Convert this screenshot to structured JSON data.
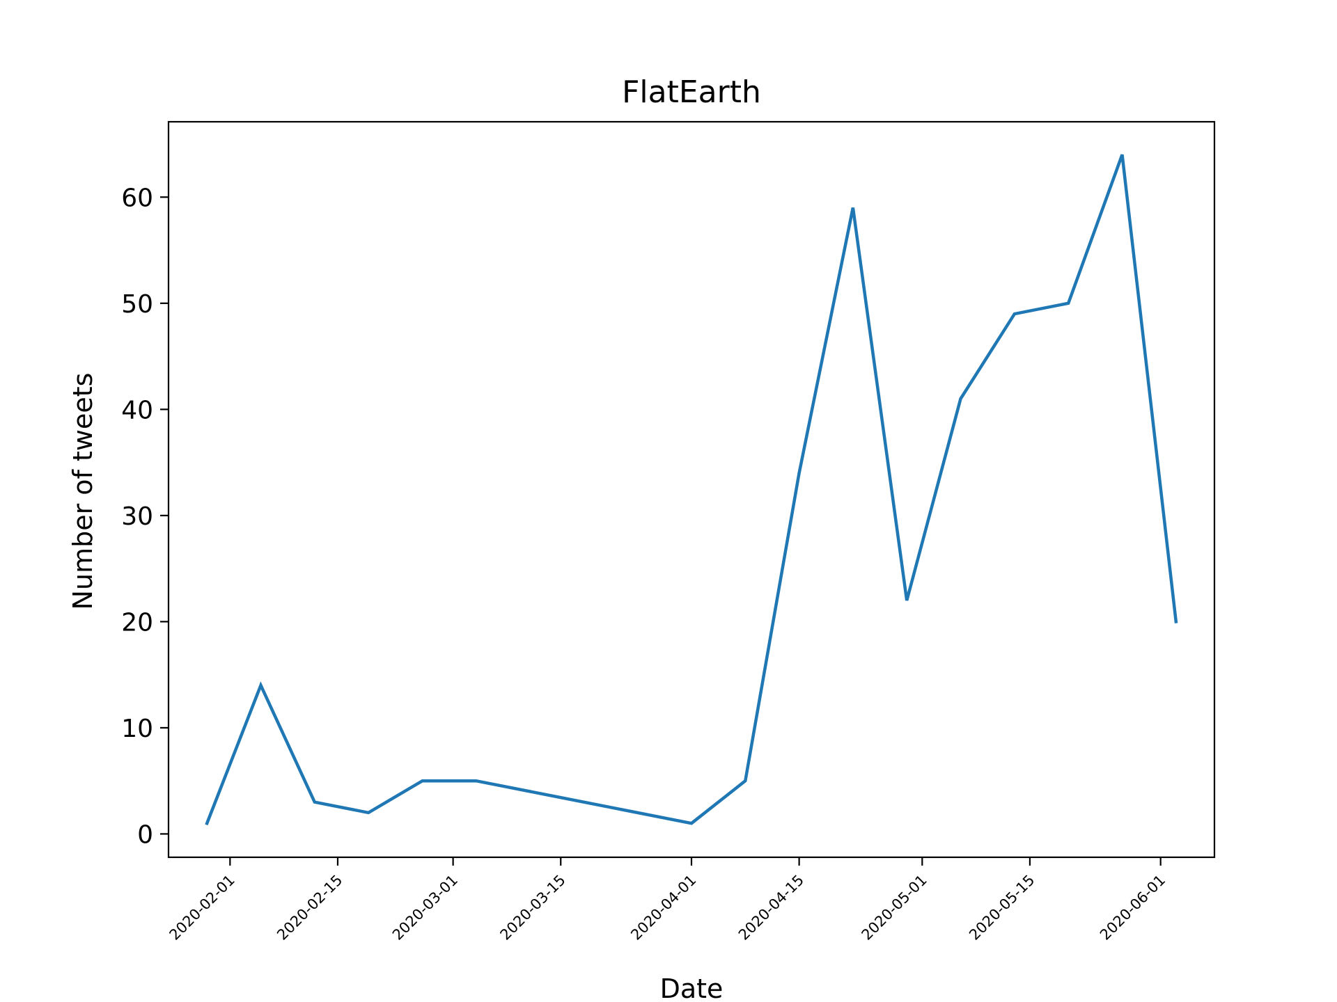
{
  "chart_data": {
    "type": "line",
    "title": "FlatEarth",
    "xlabel": "Date",
    "ylabel": "Number of tweets",
    "x_axis_type": "date",
    "xlim": [
      "2020-01-24",
      "2020-06-08"
    ],
    "ylim": [
      -2.2,
      67.1
    ],
    "yticks": [
      0,
      10,
      20,
      30,
      40,
      50,
      60
    ],
    "xticks": [
      "2020-02-01",
      "2020-02-15",
      "2020-03-01",
      "2020-03-15",
      "2020-04-01",
      "2020-04-15",
      "2020-05-01",
      "2020-05-15",
      "2020-06-01"
    ],
    "grid": false,
    "legend": "none",
    "line_color": "#1f77b4",
    "series": [
      {
        "x": [
          "2020-01-29",
          "2020-02-05",
          "2020-02-12",
          "2020-02-19",
          "2020-02-26",
          "2020-03-04",
          "2020-04-01",
          "2020-04-08",
          "2020-04-15",
          "2020-04-22",
          "2020-04-29",
          "2020-05-06",
          "2020-05-13",
          "2020-05-20",
          "2020-05-27",
          "2020-06-03"
        ],
        "y": [
          1,
          14,
          3,
          2,
          5,
          5,
          1,
          5,
          34,
          59,
          22,
          41,
          49,
          50,
          64,
          20
        ]
      }
    ]
  }
}
